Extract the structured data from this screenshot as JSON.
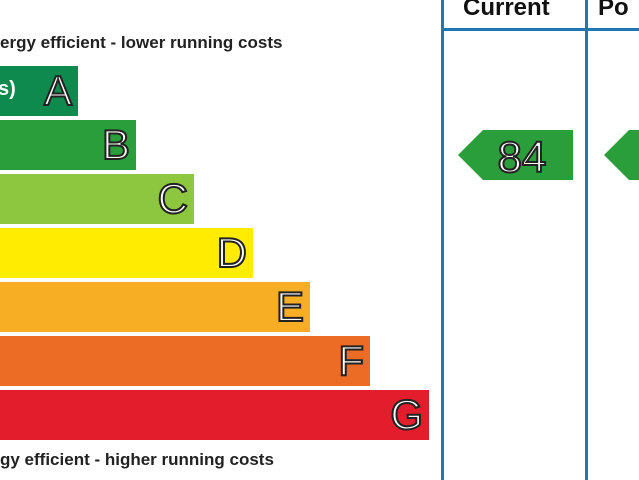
{
  "chart_data": {
    "type": "bar",
    "top_note": "ergy efficient - lower running costs",
    "bottom_note": "gy efficient - higher running costs",
    "bands": [
      {
        "letter": "A",
        "sub": "s)",
        "color": "#0e8a4f"
      },
      {
        "letter": "B",
        "sub": "",
        "color": "#2a9e3a"
      },
      {
        "letter": "C",
        "sub": "",
        "color": "#8dc63f"
      },
      {
        "letter": "D",
        "sub": "",
        "color": "#ffec00"
      },
      {
        "letter": "E",
        "sub": "",
        "color": "#f7ae25"
      },
      {
        "letter": "F",
        "sub": "",
        "color": "#ec6b25"
      },
      {
        "letter": "G",
        "sub": "",
        "color": "#e31d2c"
      }
    ],
    "columns": [
      "Current",
      "Po"
    ],
    "current": {
      "value": "84",
      "color": "#2a9e3a"
    },
    "potential": {
      "value": "",
      "color": "#2a9e3a"
    },
    "border_color": "#1f77b4"
  }
}
